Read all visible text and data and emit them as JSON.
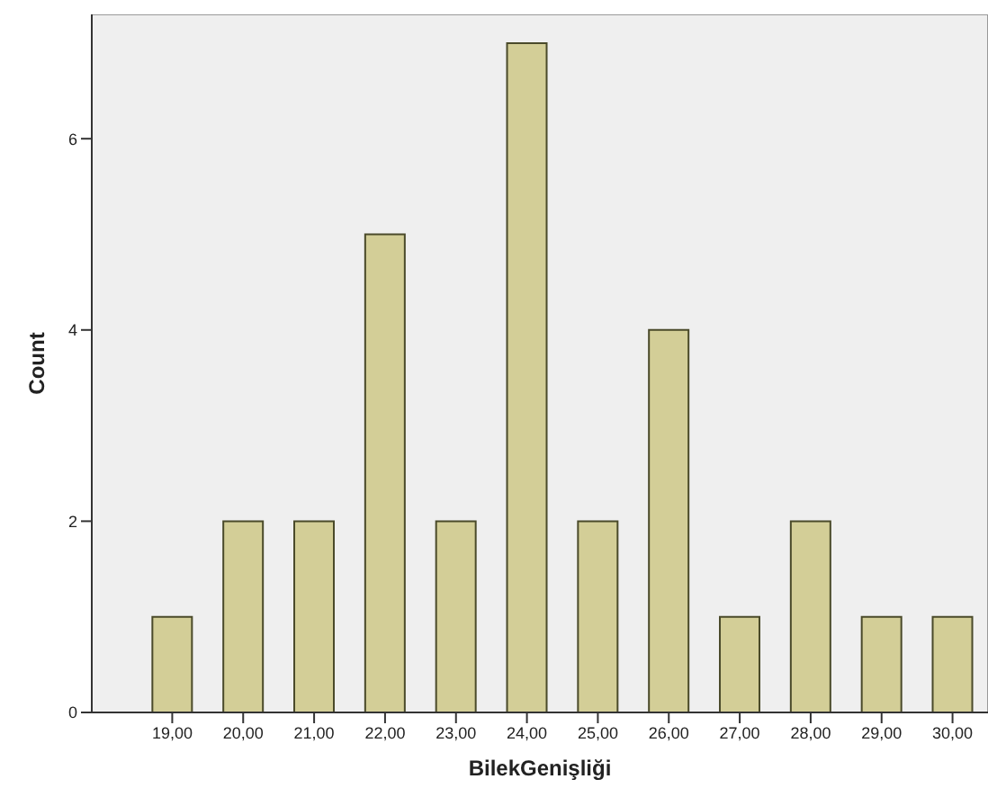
{
  "chart_data": {
    "type": "bar",
    "xlabel": "BilekGenişliği",
    "ylabel": "Count",
    "categories": [
      "19,00",
      "20,00",
      "21,00",
      "22,00",
      "23,00",
      "24,00",
      "25,00",
      "26,00",
      "27,00",
      "28,00",
      "29,00",
      "30,00"
    ],
    "values": [
      1,
      2,
      2,
      5,
      2,
      7,
      2,
      4,
      1,
      2,
      1,
      1
    ],
    "color": "#d3ce97",
    "ylim": [
      0,
      7.3
    ],
    "yticks": [
      0,
      2,
      4,
      6
    ]
  }
}
